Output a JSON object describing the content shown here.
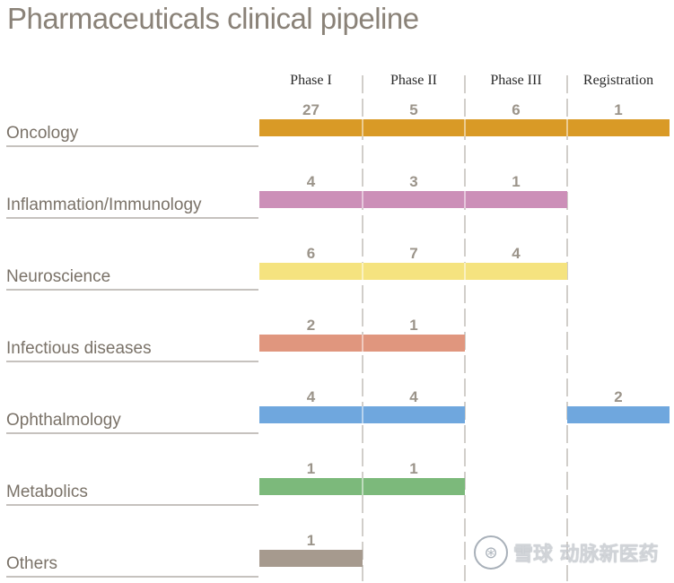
{
  "chart_data": {
    "type": "bar",
    "title": "Pharmaceuticals clinical pipeline",
    "phases": [
      "Phase I",
      "Phase II",
      "Phase III",
      "Registration"
    ],
    "categories": [
      {
        "name": "Oncology",
        "color": "#d99a26",
        "values": [
          27,
          5,
          6,
          1
        ],
        "bar_end_phase": 4,
        "bar_segments": [
          [
            0,
            4
          ]
        ]
      },
      {
        "name": "Inflammation/Immunology",
        "color": "#cc8fb8",
        "values": [
          4,
          3,
          1,
          null
        ],
        "bar_end_phase": 3,
        "bar_segments": [
          [
            0,
            3
          ]
        ]
      },
      {
        "name": "Neuroscience",
        "color": "#f5e37f",
        "values": [
          6,
          7,
          4,
          null
        ],
        "bar_end_phase": 3,
        "bar_segments": [
          [
            0,
            3
          ]
        ]
      },
      {
        "name": "Infectious diseases",
        "color": "#e0967e",
        "values": [
          2,
          1,
          null,
          null
        ],
        "bar_end_phase": 2,
        "bar_segments": [
          [
            0,
            2
          ]
        ]
      },
      {
        "name": "Ophthalmology",
        "color": "#6fa7de",
        "values": [
          4,
          4,
          null,
          2
        ],
        "bar_end_phase": 4,
        "bar_segments": [
          [
            0,
            2
          ],
          [
            3,
            4
          ]
        ]
      },
      {
        "name": "Metabolics",
        "color": "#7cb97b",
        "values": [
          1,
          1,
          null,
          null
        ],
        "bar_end_phase": 2,
        "bar_segments": [
          [
            0,
            2
          ]
        ]
      },
      {
        "name": "Others",
        "color": "#a69a8e",
        "values": [
          1,
          null,
          null,
          null
        ],
        "bar_end_phase": 1,
        "bar_segments": [
          [
            0,
            1
          ]
        ]
      }
    ]
  },
  "watermark": {
    "logo_glyph": "⊛",
    "text": "雪球 动脉新医药",
    "logo_icon": "snowball-logo-icon"
  }
}
